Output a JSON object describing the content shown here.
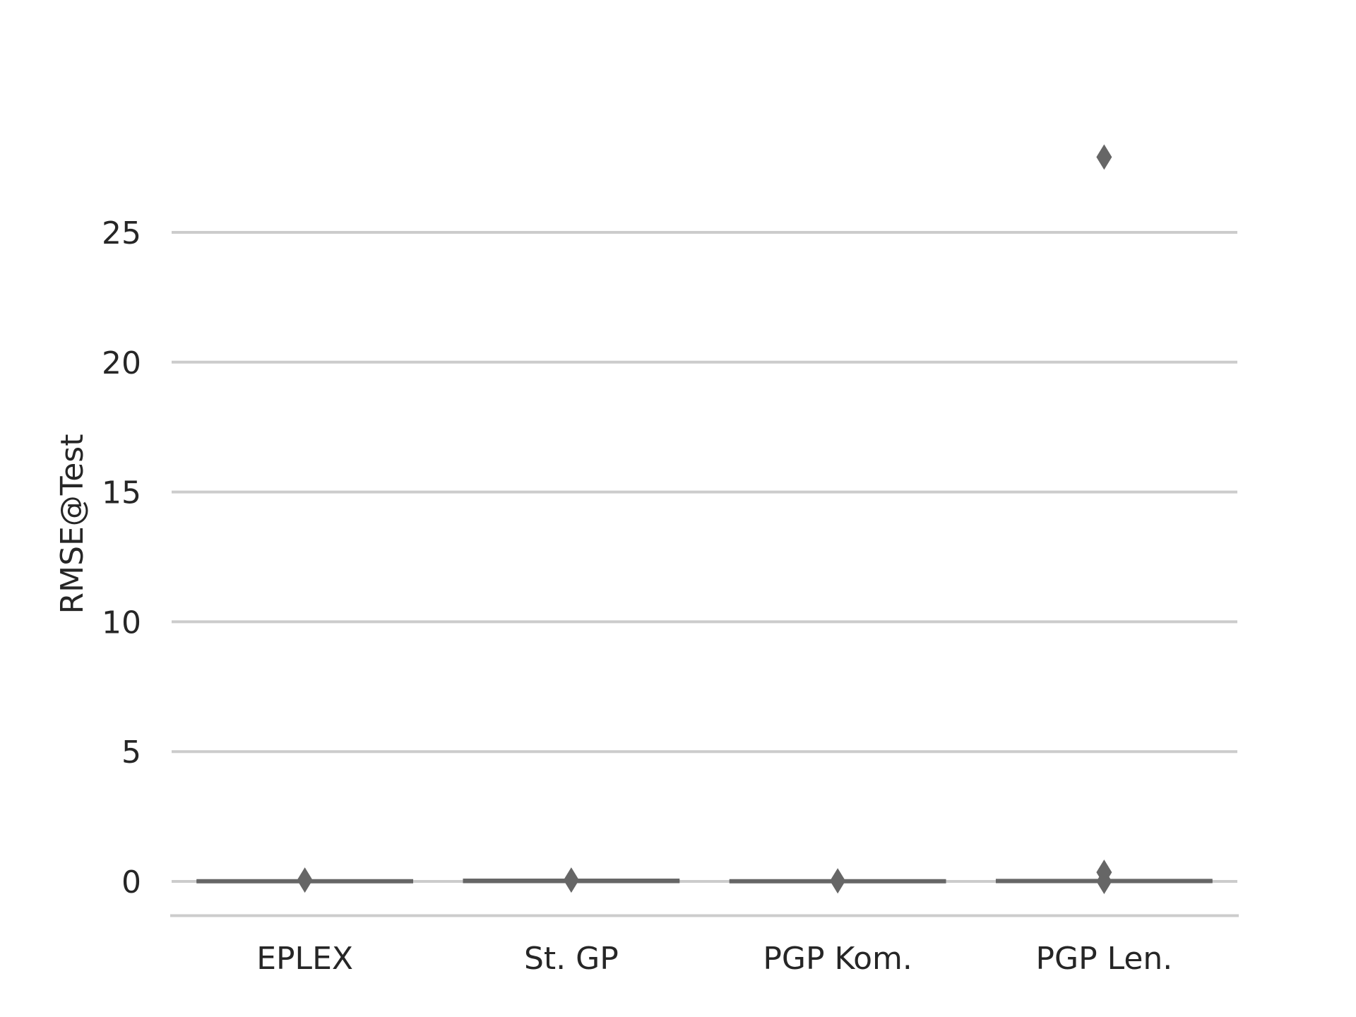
{
  "chart_data": {
    "type": "box",
    "title": "",
    "xlabel": "",
    "ylabel": "RMSE@Test",
    "ylim": [
      -1.4,
      28.5
    ],
    "yticks": [
      0,
      5,
      10,
      15,
      20,
      25
    ],
    "grid": true,
    "colors": {
      "box": "#666666",
      "grid": "#cccccc",
      "text": "#262626"
    },
    "categories": [
      "EPLEX",
      "St. GP",
      "PGP Kom.",
      "PGP Len."
    ],
    "boxes": [
      {
        "name": "EPLEX",
        "q1": 0.0,
        "median": 0.01,
        "q3": 0.02,
        "whisker_low": 0.0,
        "whisker_high": 0.03,
        "outliers": [
          0.05
        ]
      },
      {
        "name": "St. GP",
        "q1": 0.0,
        "median": 0.02,
        "q3": 0.04,
        "whisker_low": 0.0,
        "whisker_high": 0.06,
        "outliers": [
          0.05
        ]
      },
      {
        "name": "PGP Kom.",
        "q1": 0.0,
        "median": 0.01,
        "q3": 0.02,
        "whisker_low": 0.0,
        "whisker_high": 0.03,
        "outliers": [
          0.02
        ]
      },
      {
        "name": "PGP Len.",
        "q1": 0.0,
        "median": 0.01,
        "q3": 0.03,
        "whisker_low": 0.0,
        "whisker_high": 0.04,
        "outliers": [
          0.0,
          0.35,
          27.9
        ]
      }
    ]
  }
}
